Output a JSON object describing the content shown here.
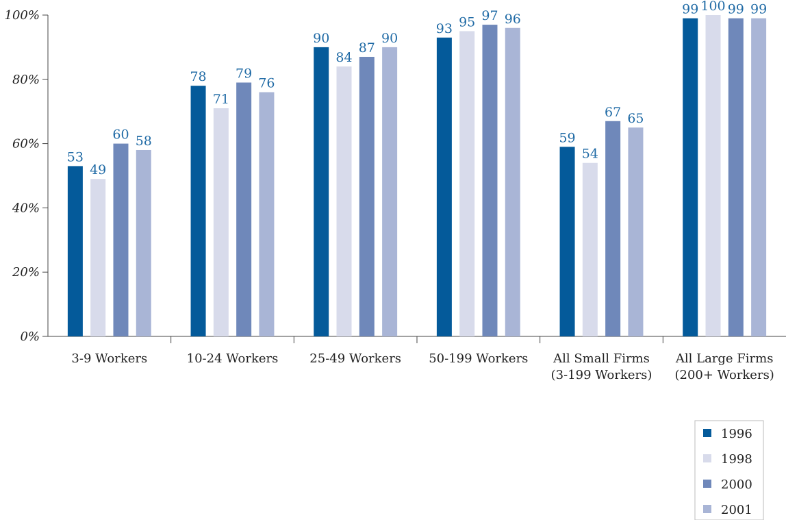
{
  "chart_data": {
    "type": "bar",
    "categories": [
      [
        "3-9 Workers"
      ],
      [
        "10-24 Workers"
      ],
      [
        "25-49 Workers"
      ],
      [
        "50-199 Workers"
      ],
      [
        "All Small Firms",
        "(3-199 Workers)"
      ],
      [
        "All Large Firms",
        "(200+ Workers)"
      ]
    ],
    "series": [
      {
        "name": "1996",
        "values": [
          53,
          78,
          90,
          93,
          59,
          99
        ],
        "color": "#045a9a"
      },
      {
        "name": "1998",
        "values": [
          49,
          71,
          84,
          95,
          54,
          100
        ],
        "color": "#d8dbeb"
      },
      {
        "name": "2000",
        "values": [
          60,
          79,
          87,
          97,
          67,
          99
        ],
        "color": "#6f88ba"
      },
      {
        "name": "2001",
        "values": [
          58,
          76,
          90,
          96,
          65,
          99
        ],
        "color": "#a9b5d6"
      }
    ],
    "ylim": [
      0,
      100
    ],
    "yticks": [
      0,
      20,
      40,
      60,
      80,
      100
    ],
    "ytick_labels": [
      "0%",
      "20%",
      "40%",
      "60%",
      "80%",
      "100%"
    ],
    "data_label_color": "#1f6aa5",
    "title": "",
    "xlabel": "",
    "ylabel": "",
    "grid": false,
    "legend_position": "bottom-right"
  }
}
